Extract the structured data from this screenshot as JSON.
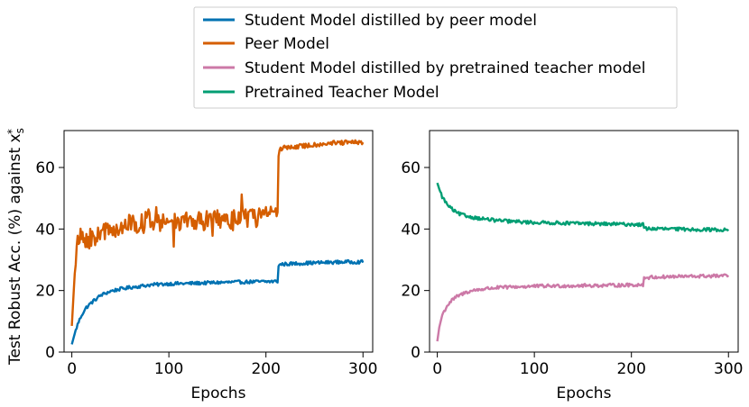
{
  "chart_data": [
    {
      "type": "line",
      "panel": "left",
      "xlabel": "Epochs",
      "ylabel": "Test Robust Acc. (%) against x",
      "ylabel_math": {
        "base": "x",
        "sub": "s",
        "sup": "*"
      },
      "xlim": [
        -8,
        310
      ],
      "ylim": [
        0,
        72
      ],
      "xticks": [
        0,
        100,
        200,
        300
      ],
      "yticks": [
        0,
        20,
        40,
        60
      ],
      "grid": false,
      "series": [
        {
          "name": "Student Model distilled by peer model",
          "color": "#0072B2",
          "x": [
            0,
            3,
            6,
            10,
            15,
            20,
            30,
            40,
            50,
            60,
            80,
            100,
            120,
            150,
            180,
            200,
            212,
            213,
            215,
            220,
            240,
            260,
            280,
            300
          ],
          "y": [
            2.5,
            6,
            9,
            12,
            14.5,
            16,
            18.5,
            19.8,
            20.5,
            21,
            21.8,
            22.2,
            22.3,
            22.6,
            22.8,
            22.9,
            23,
            28,
            28.5,
            28.6,
            28.9,
            29.1,
            29.3,
            29.3
          ]
        },
        {
          "name": "Peer Model",
          "color": "#D55E00",
          "x": [
            0,
            2,
            4,
            6,
            8,
            10,
            15,
            20,
            30,
            40,
            60,
            80,
            100,
            120,
            150,
            180,
            200,
            212,
            213,
            215,
            220,
            240,
            260,
            280,
            300
          ],
          "y": [
            8.5,
            20,
            31,
            35,
            37,
            37,
            36.5,
            37,
            38.5,
            40,
            41.5,
            42,
            42.5,
            42.5,
            43,
            43.5,
            44,
            44.5,
            64,
            66,
            66.5,
            67,
            67.8,
            68,
            68.2
          ]
        },
        {
          "name": "Student Model distilled by pretrained teacher model",
          "color": "#CC79A7",
          "x": [
            0,
            2,
            5,
            10,
            15,
            20,
            30,
            40,
            50,
            60,
            80,
            100,
            120,
            150,
            180,
            200,
            212,
            213,
            215,
            220,
            240,
            260,
            280,
            300
          ],
          "y": [
            3.5,
            8,
            12,
            15,
            16.8,
            18,
            19.5,
            20.2,
            20.6,
            20.9,
            21.2,
            21.4,
            21.5,
            21.6,
            21.7,
            21.8,
            21.9,
            24,
            24.2,
            24.3,
            24.5,
            24.6,
            24.7,
            24.8
          ]
        },
        {
          "name": "Pretrained Teacher Model",
          "color": "#009E73",
          "x": [
            0,
            2,
            5,
            10,
            15,
            20,
            30,
            40,
            50,
            60,
            80,
            100,
            120,
            150,
            180,
            200,
            212,
            213,
            215,
            220,
            240,
            260,
            280,
            300
          ],
          "y": [
            55,
            53,
            50.5,
            48,
            46.5,
            45.2,
            44.2,
            43.6,
            43.2,
            42.8,
            42.4,
            42.1,
            42,
            41.8,
            41.6,
            41.5,
            41.4,
            40.4,
            40.2,
            40.1,
            40,
            39.9,
            39.8,
            39.7
          ]
        }
      ],
      "left_series": [
        0,
        1
      ],
      "right_series": [
        2,
        3
      ]
    }
  ],
  "panels": {
    "left": {
      "xlabel": "Epochs",
      "yticks": [
        "0",
        "20",
        "40",
        "60"
      ],
      "xticks": [
        "0",
        "100",
        "200",
        "300"
      ]
    },
    "right": {
      "xlabel": "Epochs",
      "yticks": [
        "0",
        "20",
        "40",
        "60"
      ],
      "xticks": [
        "0",
        "100",
        "200",
        "300"
      ]
    }
  },
  "legend": {
    "placement": "top-center",
    "entries": [
      {
        "label": "Student Model distilled by peer model",
        "color": "#0072B2"
      },
      {
        "label": "Peer Model",
        "color": "#D55E00"
      },
      {
        "label": "Student Model distilled by pretrained teacher model",
        "color": "#CC79A7"
      },
      {
        "label": "Pretrained Teacher Model",
        "color": "#009E73"
      }
    ]
  }
}
